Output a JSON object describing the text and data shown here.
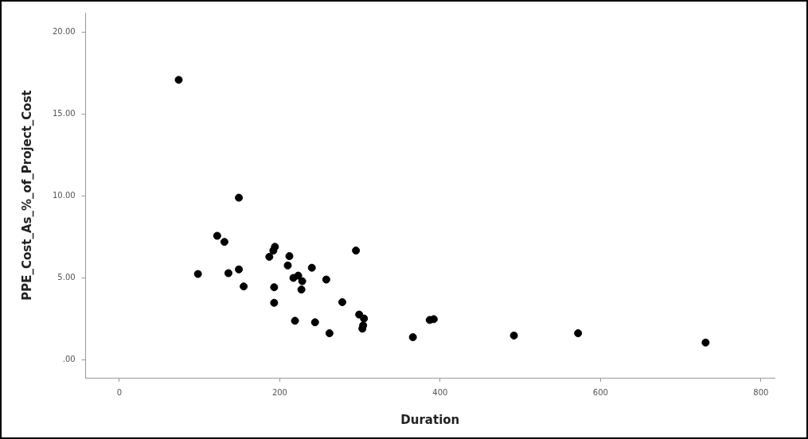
{
  "chart_data": {
    "type": "scatter",
    "xlabel": "Duration",
    "ylabel": "PPE_Cost_As_%_of_Project_Cost",
    "x": [
      74,
      149,
      122,
      131,
      98,
      136,
      149,
      155,
      194,
      192,
      187,
      212,
      210,
      240,
      217,
      223,
      228,
      227,
      193,
      193,
      219,
      244,
      258,
      295,
      278,
      299,
      305,
      304,
      303,
      262,
      366,
      387,
      392,
      492,
      572,
      731
    ],
    "values": [
      17.1,
      9.9,
      7.57,
      7.2,
      5.24,
      5.29,
      5.52,
      4.48,
      6.9,
      6.67,
      6.29,
      6.33,
      5.76,
      5.62,
      5.0,
      5.14,
      4.8,
      4.29,
      4.43,
      3.48,
      2.38,
      2.29,
      4.9,
      6.67,
      3.52,
      2.76,
      2.52,
      2.1,
      1.9,
      1.62,
      1.38,
      2.43,
      2.48,
      1.48,
      1.62,
      1.05
    ],
    "color": "#000000",
    "marker": "circle",
    "xlim": [
      -42,
      817
    ],
    "ylim": [
      -1.1,
      21.2
    ],
    "xticks": [
      0,
      200,
      400,
      600,
      800
    ],
    "yticks": [
      {
        "value": 0,
        "label": ".00"
      },
      {
        "value": 5,
        "label": "5.00"
      },
      {
        "value": 10,
        "label": "10.00"
      },
      {
        "value": 15,
        "label": "15.00"
      },
      {
        "value": 20,
        "label": "20.00"
      }
    ],
    "grid": false,
    "legend": false
  }
}
